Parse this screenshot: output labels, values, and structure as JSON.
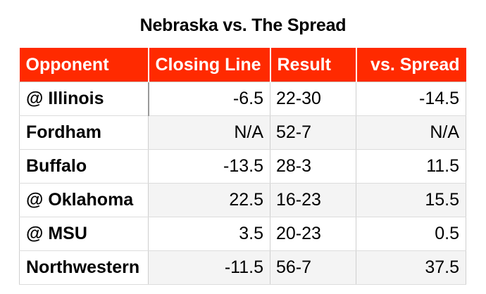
{
  "title": "Nebraska vs. The Spread",
  "colors": {
    "header_bg": "#ff2a00",
    "header_text": "#ffffff",
    "alt_row_bg": "#f4f4f4"
  },
  "table": {
    "headers": [
      "Opponent",
      "Closing Line",
      "Result",
      "vs. Spread"
    ],
    "rows": [
      {
        "opponent": "@ Illinois",
        "closing_line": "-6.5",
        "result": "22-30",
        "vs_spread": "-14.5"
      },
      {
        "opponent": "Fordham",
        "closing_line": "N/A",
        "result": "52-7",
        "vs_spread": "N/A"
      },
      {
        "opponent": "Buffalo",
        "closing_line": "-13.5",
        "result": "28-3",
        "vs_spread": "11.5"
      },
      {
        "opponent": "@ Oklahoma",
        "closing_line": "22.5",
        "result": "16-23",
        "vs_spread": "15.5"
      },
      {
        "opponent": "@ MSU",
        "closing_line": "3.5",
        "result": "20-23",
        "vs_spread": "0.5"
      },
      {
        "opponent": "Northwestern",
        "closing_line": "-11.5",
        "result": "56-7",
        "vs_spread": "37.5"
      }
    ]
  }
}
